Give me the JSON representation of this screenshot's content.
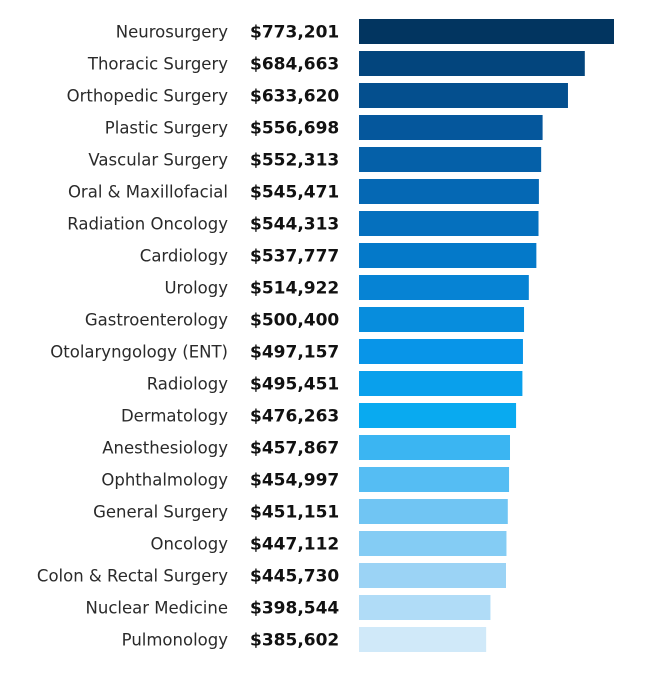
{
  "chart_data": {
    "type": "bar",
    "orientation": "horizontal",
    "title": "",
    "xlabel": "",
    "ylabel": "",
    "xlim": [
      0,
      773201
    ],
    "grid": false,
    "categories": [
      "Neurosurgery",
      "Thoracic Surgery",
      "Orthopedic Surgery",
      "Plastic Surgery",
      "Vascular Surgery",
      "Oral & Maxillofacial",
      "Radiation Oncology",
      "Cardiology",
      "Urology",
      "Gastroenterology",
      "Otolaryngology (ENT)",
      "Radiology",
      "Dermatology",
      "Anesthesiology",
      "Ophthalmology",
      "General Surgery",
      "Oncology",
      "Colon & Rectal Surgery",
      "Nuclear Medicine",
      "Pulmonology"
    ],
    "values": [
      773201,
      684663,
      633620,
      556698,
      552313,
      545471,
      544313,
      537777,
      514922,
      500400,
      497157,
      495451,
      476263,
      457867,
      454997,
      451151,
      447112,
      445730,
      398544,
      385602
    ],
    "value_labels": [
      "$773,201",
      "$684,663",
      "$633,620",
      "$556,698",
      "$552,313",
      "$545,471",
      "$544,313",
      "$537,777",
      "$514,922",
      "$500,400",
      "$497,157",
      "$495,451",
      "$476,263",
      "$457,867",
      "$454,997",
      "$451,151",
      "$447,112",
      "$445,730",
      "$398,544",
      "$385,602"
    ],
    "colors": [
      "#023560",
      "#03457d",
      "#044f8e",
      "#05579c",
      "#0560a8",
      "#0568b4",
      "#0570be",
      "#0479c9",
      "#0683d4",
      "#078ddd",
      "#0895e8",
      "#09a0ec",
      "#09aaf0",
      "#3bb5f2",
      "#55bdf3",
      "#70c5f3",
      "#84ccf4",
      "#9bd3f5",
      "#b0dcf7",
      "#d0e9f9"
    ]
  }
}
